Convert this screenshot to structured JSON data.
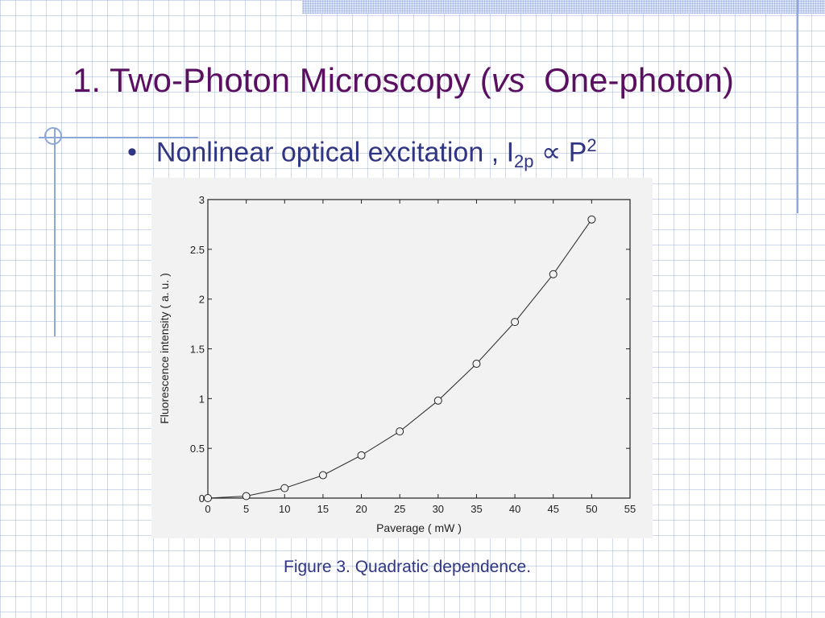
{
  "slide": {
    "title_main": "1. Two-Photon Microscopy (",
    "title_italic": "vs",
    "title_end": "One-photon)",
    "bullet_char": "•",
    "bullet_text": "Nonlinear optical excitation , I",
    "bullet_sub": "2p",
    "bullet_propto": " ∝ P",
    "bullet_sup": "2",
    "caption": "Figure 3. Quadratic dependence."
  },
  "colors": {
    "title": "#5a0f60",
    "text": "#2f3583",
    "accent_lines": "#8fa6d8"
  },
  "chart_data": {
    "type": "line",
    "title": "",
    "xlabel": "Paverage ( mW )",
    "ylabel": "Fluorescence  intensity ( a. u. )",
    "xlim": [
      0,
      55
    ],
    "ylim": [
      0,
      3
    ],
    "xticks": [
      0,
      5,
      10,
      15,
      20,
      25,
      30,
      35,
      40,
      45,
      50,
      55
    ],
    "yticks": [
      0,
      0.5,
      1,
      1.5,
      2,
      2.5,
      3
    ],
    "yticklabels": [
      "0",
      "0.5",
      "1",
      "1.5",
      "2",
      "2.5",
      "3"
    ],
    "grid": false,
    "marker": "circle",
    "series": [
      {
        "x": [
          0,
          5,
          10,
          15,
          20,
          25,
          30,
          35,
          40,
          45,
          50
        ],
        "y": [
          0.0,
          0.02,
          0.1,
          0.23,
          0.43,
          0.67,
          0.98,
          1.35,
          1.77,
          2.25,
          2.8
        ]
      }
    ]
  }
}
